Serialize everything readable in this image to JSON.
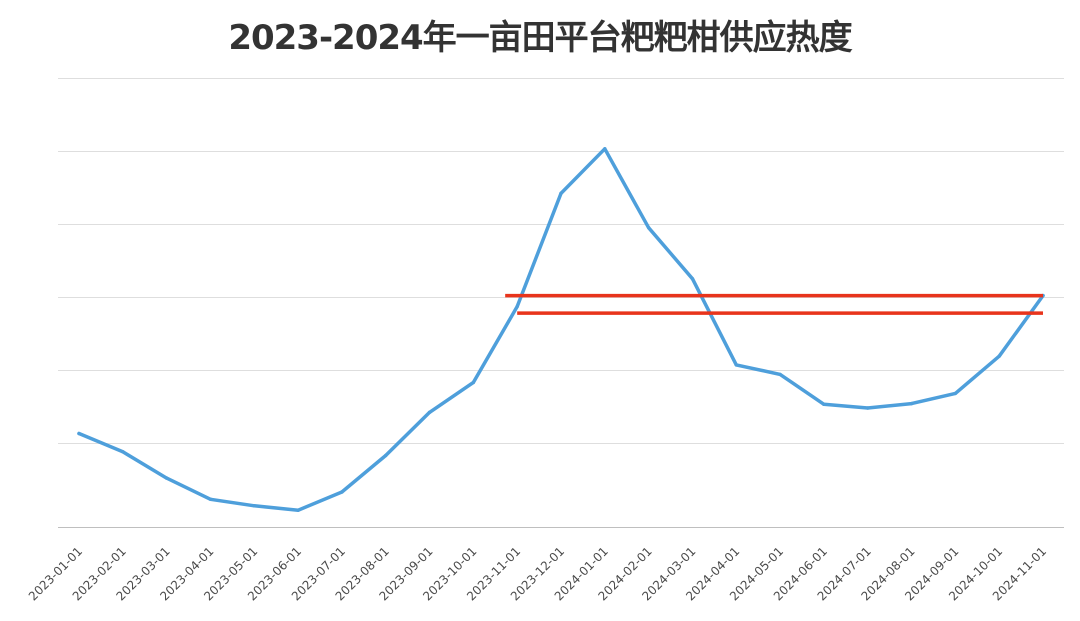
{
  "chart_data": {
    "type": "line",
    "title": "2023-2024年一亩田平台粑粑柑供应热度",
    "xlabel": "",
    "ylabel": "",
    "x": [
      "2023-01-01",
      "2023-02-01",
      "2023-03-01",
      "2023-04-01",
      "2023-05-01",
      "2023-06-01",
      "2023-07-01",
      "2023-08-01",
      "2023-09-01",
      "2023-10-01",
      "2023-11-01",
      "2023-12-01",
      "2024-01-01",
      "2024-02-01",
      "2024-03-01",
      "2024-04-01",
      "2024-05-01",
      "2024-06-01",
      "2024-07-01",
      "2024-08-01",
      "2024-09-01",
      "2024-10-01",
      "2024-11-01"
    ],
    "series": [
      {
        "values": [
          1.13,
          0.88,
          0.52,
          0.23,
          0.14,
          0.08,
          0.33,
          0.83,
          1.42,
          1.83,
          2.87,
          4.42,
          5.03,
          3.95,
          3.25,
          2.07,
          1.94,
          1.53,
          1.48,
          1.54,
          1.68,
          2.19,
          3.02
        ],
        "color": "#4e9fdb"
      }
    ],
    "ylim": [
      -0.15,
      6.0
    ],
    "yticks": [
      0,
      1,
      2,
      3,
      4,
      5,
      6
    ],
    "grid": true,
    "legend": "none",
    "reference_lines": [
      {
        "y": 3.02,
        "x_from": "2023-11-01",
        "x_to": "2024-11-01",
        "color": "#e8341c"
      },
      {
        "y": 2.78,
        "x_from": "2023-11-01",
        "x_to": "2024-11-01",
        "color": "#e8341c"
      }
    ]
  }
}
